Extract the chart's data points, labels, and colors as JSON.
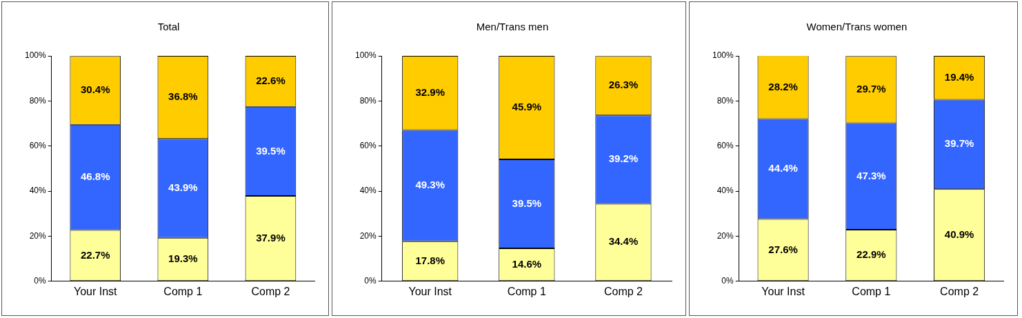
{
  "chart_data": [
    {
      "type": "bar",
      "title": "Total",
      "categories": [
        "Your Inst",
        "Comp 1",
        "Comp 2"
      ],
      "stacked": true,
      "ylim": [
        0,
        100
      ],
      "yticks": [
        {
          "value": 0,
          "label": "0%"
        },
        {
          "value": 20,
          "label": "20%"
        },
        {
          "value": 40,
          "label": "40%"
        },
        {
          "value": 60,
          "label": "60%"
        },
        {
          "value": 80,
          "label": "80%"
        },
        {
          "value": 100,
          "label": "100%"
        }
      ],
      "series": [
        {
          "color": "#ffff99",
          "values": [
            22.7,
            19.3,
            37.9
          ],
          "value_labels": [
            "22.7%",
            "19.3%",
            "37.9%"
          ]
        },
        {
          "color": "#3366ff",
          "values": [
            46.8,
            43.9,
            39.5
          ],
          "value_labels": [
            "46.8%",
            "43.9%",
            "39.5%"
          ]
        },
        {
          "color": "#ffcc00",
          "values": [
            30.4,
            36.8,
            22.6
          ],
          "value_labels": [
            "30.4%",
            "36.8%",
            "22.6%"
          ]
        }
      ]
    },
    {
      "type": "bar",
      "title": "Men/Trans men",
      "categories": [
        "Your Inst",
        "Comp 1",
        "Comp 2"
      ],
      "stacked": true,
      "ylim": [
        0,
        100
      ],
      "yticks": [
        {
          "value": 0,
          "label": "0%"
        },
        {
          "value": 20,
          "label": "20%"
        },
        {
          "value": 40,
          "label": "40%"
        },
        {
          "value": 60,
          "label": "60%"
        },
        {
          "value": 80,
          "label": "80%"
        },
        {
          "value": 100,
          "label": "100%"
        }
      ],
      "series": [
        {
          "color": "#ffff99",
          "values": [
            17.8,
            14.6,
            34.4
          ],
          "value_labels": [
            "17.8%",
            "14.6%",
            "34.4%"
          ]
        },
        {
          "color": "#3366ff",
          "values": [
            49.3,
            39.5,
            39.2
          ],
          "value_labels": [
            "49.3%",
            "39.5%",
            "39.2%"
          ]
        },
        {
          "color": "#ffcc00",
          "values": [
            32.9,
            45.9,
            26.3
          ],
          "value_labels": [
            "32.9%",
            "45.9%",
            "26.3%"
          ]
        }
      ]
    },
    {
      "type": "bar",
      "title": "Women/Trans women",
      "categories": [
        "Your Inst",
        "Comp 1",
        "Comp 2"
      ],
      "stacked": true,
      "ylim": [
        0,
        100
      ],
      "yticks": [
        {
          "value": 0,
          "label": "0%"
        },
        {
          "value": 20,
          "label": "20%"
        },
        {
          "value": 40,
          "label": "40%"
        },
        {
          "value": 60,
          "label": "60%"
        },
        {
          "value": 80,
          "label": "80%"
        },
        {
          "value": 100,
          "label": "100%"
        }
      ],
      "series": [
        {
          "color": "#ffff99",
          "values": [
            27.6,
            22.9,
            40.9
          ],
          "value_labels": [
            "27.6%",
            "22.9%",
            "40.9%"
          ]
        },
        {
          "color": "#3366ff",
          "values": [
            44.4,
            47.3,
            39.7
          ],
          "value_labels": [
            "44.4%",
            "47.3%",
            "39.7%"
          ]
        },
        {
          "color": "#ffcc00",
          "values": [
            28.2,
            29.7,
            19.4
          ],
          "value_labels": [
            "28.2%",
            "29.7%",
            "19.4%"
          ]
        }
      ]
    }
  ]
}
